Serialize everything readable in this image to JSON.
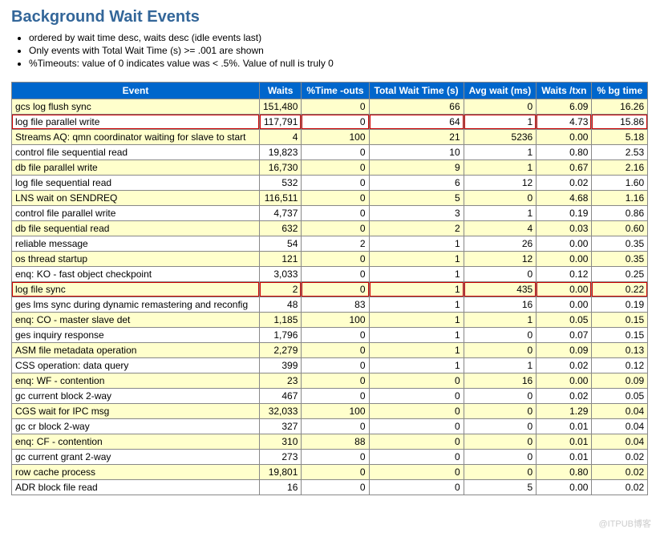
{
  "title": "Background Wait Events",
  "notes": [
    "ordered by wait time desc, waits desc (idle events last)",
    "Only events with Total Wait Time (s) >= .001 are shown",
    "%Timeouts: value of 0 indicates value was < .5%. Value of null is truly 0"
  ],
  "columns": [
    "Event",
    "Waits",
    "%Time -outs",
    "Total Wait Time (s)",
    "Avg wait (ms)",
    "Waits /txn",
    "% bg time"
  ],
  "rows": [
    {
      "hl": false,
      "c": [
        "gcs log flush sync",
        "151,480",
        "0",
        "66",
        "0",
        "6.09",
        "16.26"
      ]
    },
    {
      "hl": true,
      "c": [
        "log file parallel write",
        "117,791",
        "0",
        "64",
        "1",
        "4.73",
        "15.86"
      ]
    },
    {
      "hl": false,
      "c": [
        "Streams AQ: qmn coordinator waiting for slave to start",
        "4",
        "100",
        "21",
        "5236",
        "0.00",
        "5.18"
      ]
    },
    {
      "hl": false,
      "c": [
        "control file sequential read",
        "19,823",
        "0",
        "10",
        "1",
        "0.80",
        "2.53"
      ]
    },
    {
      "hl": false,
      "c": [
        "db file parallel write",
        "16,730",
        "0",
        "9",
        "1",
        "0.67",
        "2.16"
      ]
    },
    {
      "hl": false,
      "c": [
        "log file sequential read",
        "532",
        "0",
        "6",
        "12",
        "0.02",
        "1.60"
      ]
    },
    {
      "hl": false,
      "c": [
        "LNS wait on SENDREQ",
        "116,511",
        "0",
        "5",
        "0",
        "4.68",
        "1.16"
      ]
    },
    {
      "hl": false,
      "c": [
        "control file parallel write",
        "4,737",
        "0",
        "3",
        "1",
        "0.19",
        "0.86"
      ]
    },
    {
      "hl": false,
      "c": [
        "db file sequential read",
        "632",
        "0",
        "2",
        "4",
        "0.03",
        "0.60"
      ]
    },
    {
      "hl": false,
      "c": [
        "reliable message",
        "54",
        "2",
        "1",
        "26",
        "0.00",
        "0.35"
      ]
    },
    {
      "hl": false,
      "c": [
        "os thread startup",
        "121",
        "0",
        "1",
        "12",
        "0.00",
        "0.35"
      ]
    },
    {
      "hl": false,
      "c": [
        "enq: KO - fast object checkpoint",
        "3,033",
        "0",
        "1",
        "0",
        "0.12",
        "0.25"
      ]
    },
    {
      "hl": true,
      "c": [
        "log file sync",
        "2",
        "0",
        "1",
        "435",
        "0.00",
        "0.22"
      ]
    },
    {
      "hl": false,
      "c": [
        "ges lms sync during dynamic remastering and reconfig",
        "48",
        "83",
        "1",
        "16",
        "0.00",
        "0.19"
      ]
    },
    {
      "hl": false,
      "c": [
        "enq: CO - master slave det",
        "1,185",
        "100",
        "1",
        "1",
        "0.05",
        "0.15"
      ]
    },
    {
      "hl": false,
      "c": [
        "ges inquiry response",
        "1,796",
        "0",
        "1",
        "0",
        "0.07",
        "0.15"
      ]
    },
    {
      "hl": false,
      "c": [
        "ASM file metadata operation",
        "2,279",
        "0",
        "1",
        "0",
        "0.09",
        "0.13"
      ]
    },
    {
      "hl": false,
      "c": [
        "CSS operation: data query",
        "399",
        "0",
        "1",
        "1",
        "0.02",
        "0.12"
      ]
    },
    {
      "hl": false,
      "c": [
        "enq: WF - contention",
        "23",
        "0",
        "0",
        "16",
        "0.00",
        "0.09"
      ]
    },
    {
      "hl": false,
      "c": [
        "gc current block 2-way",
        "467",
        "0",
        "0",
        "0",
        "0.02",
        "0.05"
      ]
    },
    {
      "hl": false,
      "c": [
        "CGS wait for IPC msg",
        "32,033",
        "100",
        "0",
        "0",
        "1.29",
        "0.04"
      ]
    },
    {
      "hl": false,
      "c": [
        "gc cr block 2-way",
        "327",
        "0",
        "0",
        "0",
        "0.01",
        "0.04"
      ]
    },
    {
      "hl": false,
      "c": [
        "enq: CF - contention",
        "310",
        "88",
        "0",
        "0",
        "0.01",
        "0.04"
      ]
    },
    {
      "hl": false,
      "c": [
        "gc current grant 2-way",
        "273",
        "0",
        "0",
        "0",
        "0.01",
        "0.02"
      ]
    },
    {
      "hl": false,
      "c": [
        "row cache process",
        "19,801",
        "0",
        "0",
        "0",
        "0.80",
        "0.02"
      ]
    },
    {
      "hl": false,
      "c": [
        "ADR block file read",
        "16",
        "0",
        "0",
        "5",
        "0.00",
        "0.02"
      ]
    }
  ],
  "watermark": "@ITPUB博客",
  "colors": {
    "header_bg": "#0066cc",
    "header_text": "#ffffff",
    "odd_row": "#FFFFCC",
    "even_row": "#FFFFFF",
    "border": "#888888",
    "highlight": "#cc0000"
  }
}
